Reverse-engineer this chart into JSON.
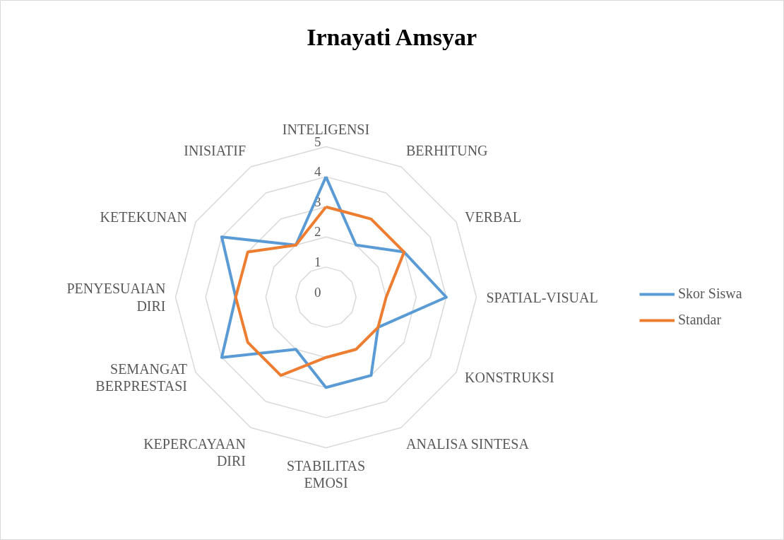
{
  "chart_data": {
    "type": "radar",
    "title": "Irnayati Amsyar",
    "categories": [
      "INTELIGENSI",
      "BERHITUNG",
      "VERBAL",
      "SPATIAL-VISUAL",
      "KONSTRUKSI",
      "ANALISA SINTESA",
      "STABILITAS\nEMOSI",
      "KEPERCAYAAN\nDIRI",
      "SEMANGAT\nBERPRESTASI",
      "PENYESUAIAN\nDIRI",
      "KETEKUNAN",
      "INISIATIF"
    ],
    "series": [
      {
        "name": "Skor Siswa",
        "color": "#5b9bd5",
        "values": [
          4,
          2,
          3,
          4,
          2,
          3,
          3,
          2,
          4,
          3,
          4,
          2
        ]
      },
      {
        "name": "Standar",
        "color": "#ed7d31",
        "values": [
          3,
          3,
          3,
          2,
          2,
          2,
          2,
          3,
          3,
          3,
          3,
          2
        ]
      }
    ],
    "ylim": [
      0,
      5
    ],
    "yticks": [
      0,
      1,
      2,
      3,
      4,
      5
    ],
    "grid": true,
    "legend": "right",
    "marker": "none",
    "line_style": "solid"
  }
}
